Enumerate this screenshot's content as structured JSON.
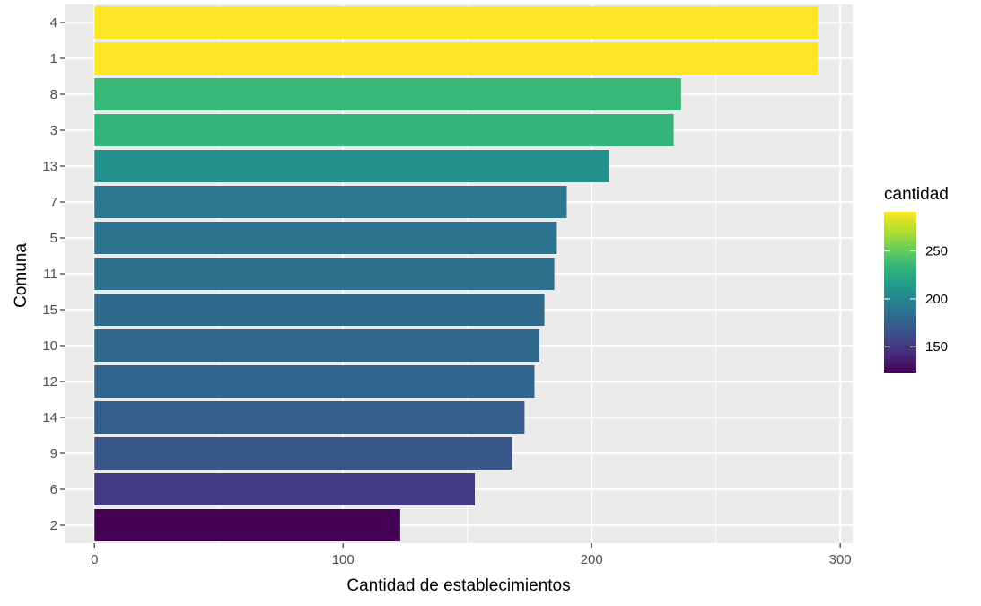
{
  "chart_data": {
    "type": "bar",
    "orientation": "horizontal",
    "title": "",
    "xlabel": "Cantidad de establecimientos",
    "ylabel": "Comuna",
    "xlim": [
      -12,
      305
    ],
    "xticks": [
      0,
      100,
      200,
      300
    ],
    "categories": [
      "4",
      "1",
      "8",
      "3",
      "13",
      "7",
      "5",
      "11",
      "15",
      "10",
      "12",
      "14",
      "9",
      "6",
      "2"
    ],
    "values": [
      291,
      291,
      236,
      233,
      207,
      190,
      186,
      185,
      181,
      179,
      177,
      173,
      168,
      153,
      123
    ],
    "grid": true,
    "legend": {
      "title": "cantidad",
      "position": "right",
      "type": "colorbar",
      "palette": "viridis",
      "range": [
        123,
        291
      ],
      "ticks": [
        150,
        200,
        250
      ],
      "tick_labels": [
        "150",
        "200",
        "250"
      ]
    },
    "colors": {
      "panel_background": "#ebebeb",
      "grid_line": "#ffffff",
      "tick_text": "#4d4d4d",
      "tick_mark": "#333333"
    }
  }
}
